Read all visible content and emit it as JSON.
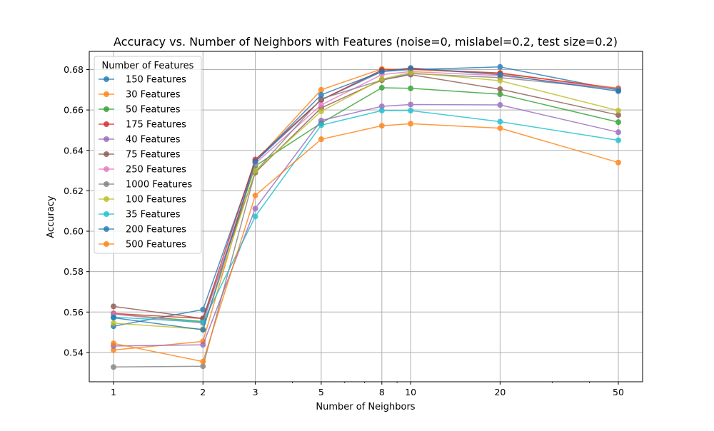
{
  "chart_data": {
    "type": "line",
    "title": "Accuracy vs. Number of Neighbors with Features (noise=0, mislabel=0.2, test size=0.2)",
    "xlabel": "Number of Neighbors",
    "ylabel": "Accuracy",
    "x_scale": "log",
    "x": [
      1,
      2,
      3,
      5,
      8,
      10,
      20,
      50
    ],
    "x_ticks": [
      "1",
      "2",
      "3",
      "5",
      "8",
      "10",
      "20",
      "50"
    ],
    "y_ticks": [
      "0.54",
      "0.56",
      "0.58",
      "0.60",
      "0.62",
      "0.64",
      "0.66",
      "0.68"
    ],
    "ylim": [
      0.5255,
      0.689
    ],
    "grid": true,
    "legend_title": "Number of Features",
    "legend_position": "upper-left",
    "series": [
      {
        "name": "150 Features",
        "color": "#1f77b4",
        "values": [
          0.553,
          0.5612,
          0.6345,
          0.665,
          0.679,
          0.68,
          0.6813,
          0.6698
        ]
      },
      {
        "name": "30 Features",
        "color": "#ff7f0e",
        "values": [
          0.5412,
          0.5455,
          0.6345,
          0.67,
          0.6803,
          0.68,
          0.678,
          0.6708
        ]
      },
      {
        "name": "50 Features",
        "color": "#2ca02c",
        "values": [
          0.559,
          0.5553,
          0.6323,
          0.6535,
          0.671,
          0.6707,
          0.6678,
          0.654
        ]
      },
      {
        "name": "175 Features",
        "color": "#d62728",
        "values": [
          0.5593,
          0.5568,
          0.6355,
          0.665,
          0.6798,
          0.6803,
          0.6783,
          0.6705
        ]
      },
      {
        "name": "40 Features",
        "color": "#9467bd",
        "values": [
          0.5432,
          0.5438,
          0.6112,
          0.6548,
          0.6618,
          0.6627,
          0.6625,
          0.649
        ]
      },
      {
        "name": "75 Features",
        "color": "#8c564b",
        "values": [
          0.5628,
          0.5568,
          0.629,
          0.661,
          0.6748,
          0.6775,
          0.6703,
          0.6575
        ]
      },
      {
        "name": "250 Features",
        "color": "#e377c2",
        "values": [
          0.559,
          0.5545,
          0.6335,
          0.6625,
          0.6775,
          0.679,
          0.677,
          0.6705
        ]
      },
      {
        "name": "1000 Features",
        "color": "#7f7f7f",
        "values": [
          0.5328,
          0.5332,
          0.6295,
          0.6655,
          0.6748,
          0.678,
          0.676,
          0.6703
        ]
      },
      {
        "name": "100 Features",
        "color": "#bcbd22",
        "values": [
          0.5545,
          0.5515,
          0.6298,
          0.6593,
          0.6753,
          0.6785,
          0.6745,
          0.6597
        ]
      },
      {
        "name": "35 Features",
        "color": "#17becf",
        "values": [
          0.5575,
          0.555,
          0.6073,
          0.6525,
          0.6597,
          0.6597,
          0.6542,
          0.645
        ]
      },
      {
        "name": "200 Features",
        "color": "#1f77b4",
        "values": [
          0.5572,
          0.5512,
          0.6345,
          0.6675,
          0.679,
          0.6808,
          0.6775,
          0.6693
        ]
      },
      {
        "name": "500 Features",
        "color": "#ff7f0e",
        "values": [
          0.5445,
          0.5355,
          0.6177,
          0.6455,
          0.6522,
          0.6532,
          0.651,
          0.634
        ]
      }
    ]
  }
}
